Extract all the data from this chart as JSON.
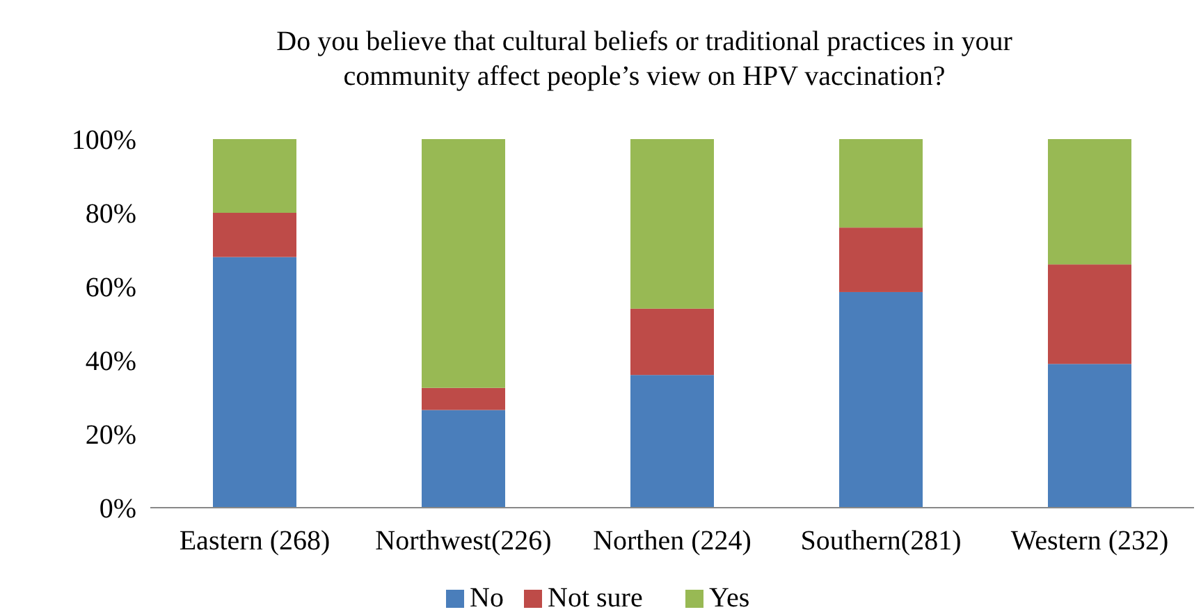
{
  "chart_data": {
    "type": "bar",
    "title": "Do you believe that cultural beliefs or traditional practices in your community affect people’s view on HPV vaccination?",
    "categories": [
      "Eastern (268)",
      "Northwest(226)",
      "Northen (224)",
      "Southern(281)",
      "Western (232)"
    ],
    "stacked": true,
    "series": [
      {
        "name": "No",
        "color": "#4a7ebb",
        "values": [
          68,
          26.5,
          36,
          58.5,
          39
        ]
      },
      {
        "name": "Not sure",
        "color": "#be4b48",
        "values": [
          12,
          6,
          18,
          17.5,
          27
        ]
      },
      {
        "name": "Yes",
        "color": "#98b954",
        "values": [
          20,
          67.5,
          46,
          24,
          34
        ]
      }
    ],
    "ylim": [
      0,
      100
    ],
    "yticks": [
      {
        "value": 0,
        "label": "0%"
      },
      {
        "value": 20,
        "label": "20%"
      },
      {
        "value": 40,
        "label": "40%"
      },
      {
        "value": 60,
        "label": "60%"
      },
      {
        "value": 80,
        "label": "80%"
      },
      {
        "value": 100,
        "label": "100%"
      }
    ],
    "legend": "bottom"
  }
}
